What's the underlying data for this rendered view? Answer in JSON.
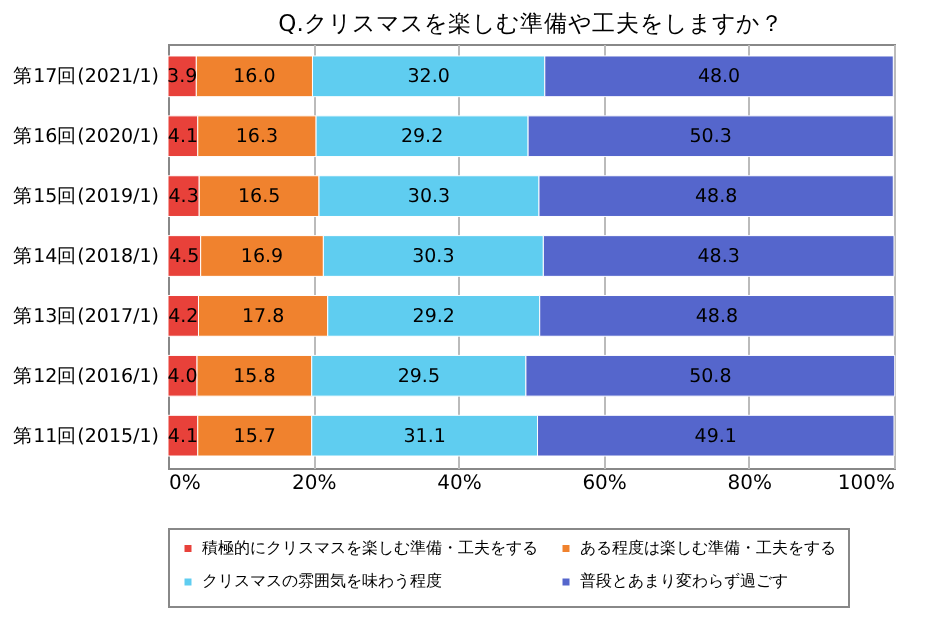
{
  "chart_data": {
    "type": "bar",
    "orientation": "horizontal",
    "stacked": true,
    "title": "Q.クリスマスを楽しむ準備や工夫をしますか？",
    "categories": [
      "第17回(2021/1)",
      "第16回(2020/1)",
      "第15回(2019/1)",
      "第14回(2018/1)",
      "第13回(2017/1)",
      "第12回(2016/1)",
      "第11回(2015/1)"
    ],
    "series": [
      {
        "name": "積極的にクリスマスを楽しむ準備・工夫をする",
        "color": "#e8413a",
        "values": [
          3.9,
          4.1,
          4.3,
          4.5,
          4.2,
          4.0,
          4.1
        ],
        "value_labels": [
          "3.9",
          "4.1",
          "4.3",
          "4.5",
          "4.2",
          "4.0",
          "4.1"
        ]
      },
      {
        "name": "ある程度は楽しむ準備・工夫をする",
        "color": "#f0822e",
        "values": [
          16.0,
          16.3,
          16.5,
          16.9,
          17.8,
          15.8,
          15.7
        ],
        "value_labels": [
          "16.0",
          "16.3",
          "16.5",
          "16.9",
          "17.8",
          "15.8",
          "15.7"
        ]
      },
      {
        "name": "クリスマスの雰囲気を味わう程度",
        "color": "#5fcdf0",
        "values": [
          32.0,
          29.2,
          30.3,
          30.3,
          29.2,
          29.5,
          31.1
        ],
        "value_labels": [
          "32.0",
          "29.2",
          "30.3",
          "30.3",
          "29.2",
          "29.5",
          "31.1"
        ]
      },
      {
        "name": "普段とあまり変わらず過ごす",
        "color": "#5566cc",
        "values": [
          48.0,
          50.3,
          48.8,
          48.3,
          48.8,
          50.8,
          49.1
        ],
        "value_labels": [
          "48.0",
          "50.3",
          "48.8",
          "48.3",
          "48.8",
          "50.8",
          "49.1"
        ]
      }
    ],
    "xlim": [
      0,
      100
    ],
    "xticks": [
      {
        "value": 0,
        "label": "0%"
      },
      {
        "value": 20,
        "label": "20%"
      },
      {
        "value": 40,
        "label": "40%"
      },
      {
        "value": 60,
        "label": "60%"
      },
      {
        "value": 80,
        "label": "80%"
      },
      {
        "value": 100,
        "label": "100%"
      }
    ],
    "grid": "x",
    "legend": "bottom"
  }
}
